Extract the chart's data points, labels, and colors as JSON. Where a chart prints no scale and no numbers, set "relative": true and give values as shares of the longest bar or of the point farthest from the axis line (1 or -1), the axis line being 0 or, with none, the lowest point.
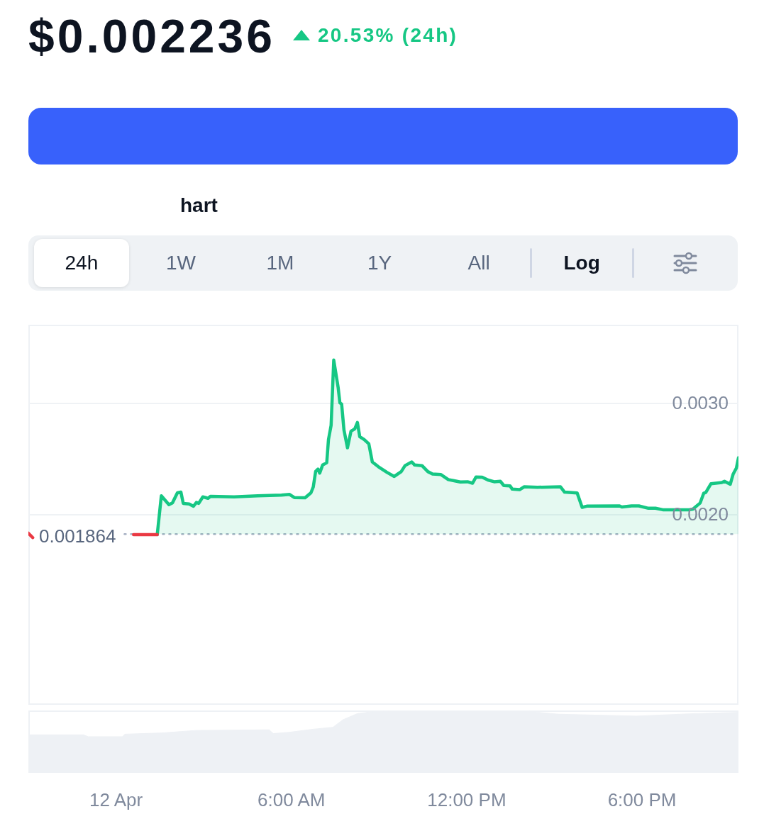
{
  "chart_data": [
    {
      "type": "area",
      "title": "$0.002236",
      "subtitle": "20.53% (24h)",
      "annotations": [
        "hart",
        "24h",
        "1W",
        "1M",
        "1Y",
        "All",
        "Log"
      ],
      "xlim": [
        -3,
        21.3
      ],
      "ylim": [
        0.001,
        0.004
      ],
      "yticks": [
        {
          "value": 0.002,
          "label": "0.0020"
        },
        {
          "value": 0.003,
          "label": "0.0030"
        }
      ],
      "log": "y",
      "grid": "y",
      "tick_labels": "y",
      "ref_lines": [
        {
          "axis": "y",
          "value": 0.001864,
          "label": "0.001864",
          "color": "#a6b0c3",
          "line_style": "dotted"
        }
      ],
      "series": [
        {
          "type": "line",
          "color": "#ea3943",
          "x": [
            -3.0,
            -2.85,
            -1.0,
            0.6,
            1.0,
            1.41
          ],
          "values": [
            0.00187,
            0.00184,
            null,
            0.00186,
            0.00186,
            0.00186
          ]
        },
        {
          "color": "#16c784",
          "x": [
            1.41,
            1.55,
            1.81,
            1.93,
            2.1,
            2.22,
            2.3,
            2.5,
            2.65,
            2.75,
            2.83,
            2.97,
            3.15,
            3.23,
            4.04,
            4.85,
            5.66,
            5.94,
            6.1,
            6.47,
            6.67,
            6.75,
            6.83,
            6.91,
            6.97,
            7.07,
            7.21,
            7.27,
            7.36,
            7.45,
            7.6,
            7.66,
            7.72,
            7.8,
            7.92,
            8.04,
            8.17,
            8.26,
            8.34,
            8.49,
            8.65,
            8.77,
            8.98,
            9.27,
            9.52,
            9.76,
            9.89,
            10.12,
            10.22,
            10.47,
            10.67,
            10.83,
            11.12,
            11.37,
            11.54,
            11.78,
            12.03,
            12.2,
            12.32,
            12.53,
            12.73,
            12.94,
            13.15,
            13.27,
            13.48,
            13.56,
            13.81,
            13.97,
            14.42,
            15.21,
            15.35,
            15.78,
            15.95,
            16.11,
            17.23,
            17.31,
            17.64,
            17.89,
            18.22,
            18.46,
            18.71,
            19.62,
            19.74,
            19.99,
            20.11,
            20.18,
            20.36,
            20.73,
            20.82,
            21.02,
            21.12,
            21.23,
            21.3
          ],
          "values": [
            0.00186,
            0.002143,
            0.002075,
            0.002088,
            0.002167,
            0.002173,
            0.002085,
            0.002081,
            0.002063,
            0.002092,
            0.002085,
            0.002135,
            0.002124,
            0.002139,
            0.002135,
            0.002143,
            0.002149,
            0.002154,
            0.00213,
            0.002128,
            0.002167,
            0.002214,
            0.002342,
            0.002362,
            0.002328,
            0.002398,
            0.002418,
            0.002632,
            0.002772,
            0.003516,
            0.003183,
            0.003009,
            0.002996,
            0.002724,
            0.002554,
            0.002713,
            0.002736,
            0.002801,
            0.002659,
            0.002632,
            0.002591,
            0.002425,
            0.002383,
            0.002335,
            0.0023,
            0.002341,
            0.002393,
            0.002425,
            0.002398,
            0.002393,
            0.002341,
            0.002321,
            0.002316,
            0.002274,
            0.002266,
            0.002254,
            0.002256,
            0.002244,
            0.002296,
            0.002294,
            0.00227,
            0.002256,
            0.00226,
            0.002225,
            0.002223,
            0.002196,
            0.002192,
            0.002215,
            0.002211,
            0.002215,
            0.002172,
            0.002165,
            0.002055,
            0.002064,
            0.002066,
            0.002058,
            0.002066,
            0.002066,
            0.002048,
            0.002048,
            0.002037,
            0.002037,
            0.002042,
            0.002088,
            0.002163,
            0.002169,
            0.00224,
            0.00225,
            0.00226,
            0.002236,
            0.002321,
            0.002372,
            0.002462
          ]
        }
      ]
    },
    {
      "type": "area",
      "relative": true,
      "color": "#eef1f5",
      "tick_labels": "x",
      "xlim": [
        -3,
        21.3
      ],
      "xticks": [
        {
          "value": 0,
          "label": "12 Apr"
        },
        {
          "value": 6,
          "label": "6:00 AM"
        },
        {
          "value": 12,
          "label": "12:00 PM"
        },
        {
          "value": 18,
          "label": "6:00 PM"
        }
      ],
      "x": [
        -3.0,
        -1.12,
        -0.95,
        0.22,
        0.3,
        1.56,
        2.73,
        5.24,
        5.38,
        5.92,
        6.75,
        7.42,
        7.76,
        8.26,
        8.76,
        10.27,
        14.13,
        14.46,
        15.13,
        17.81,
        19.82,
        21.3
      ],
      "values": [
        0.61,
        0.61,
        0.58,
        0.58,
        0.62,
        0.64,
        0.68,
        0.69,
        0.63,
        0.65,
        0.7,
        0.73,
        0.85,
        0.95,
        0.98,
        1,
        1,
        0.97,
        0.94,
        0.91,
        0.95,
        0.97
      ]
    }
  ]
}
